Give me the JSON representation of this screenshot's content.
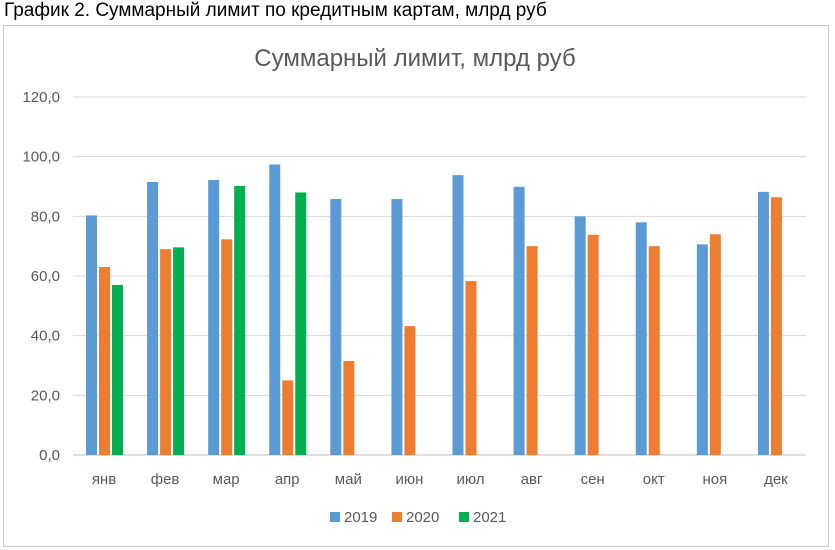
{
  "caption": "График 2. Суммарный лимит по кредитным картам, млрд руб",
  "chart_data": {
    "type": "bar",
    "title": "Суммарный лимит, млрд руб",
    "xlabel": "",
    "ylabel": "",
    "ylim": [
      0,
      120
    ],
    "yticks": [
      "0,0",
      "20,0",
      "40,0",
      "60,0",
      "80,0",
      "100,0",
      "120,0"
    ],
    "grid": true,
    "legend_position": "bottom",
    "categories": [
      "янв",
      "фев",
      "мар",
      "апр",
      "май",
      "июн",
      "июл",
      "авг",
      "сен",
      "окт",
      "ноя",
      "дек"
    ],
    "series": [
      {
        "name": "2019",
        "color": "#5b9bd5",
        "values": [
          80.3,
          91.5,
          92.2,
          97.4,
          85.8,
          85.8,
          93.8,
          89.9,
          80.0,
          78.0,
          70.6,
          88.2
        ]
      },
      {
        "name": "2020",
        "color": "#ed7d31",
        "values": [
          63.0,
          69.0,
          72.3,
          25.0,
          31.5,
          43.2,
          58.3,
          70.0,
          73.8,
          70.0,
          74.0,
          86.4
        ]
      },
      {
        "name": "2021",
        "color": "#00b050",
        "values": [
          57.0,
          69.6,
          90.2,
          88.0,
          null,
          null,
          null,
          null,
          null,
          null,
          null,
          null
        ]
      }
    ]
  }
}
